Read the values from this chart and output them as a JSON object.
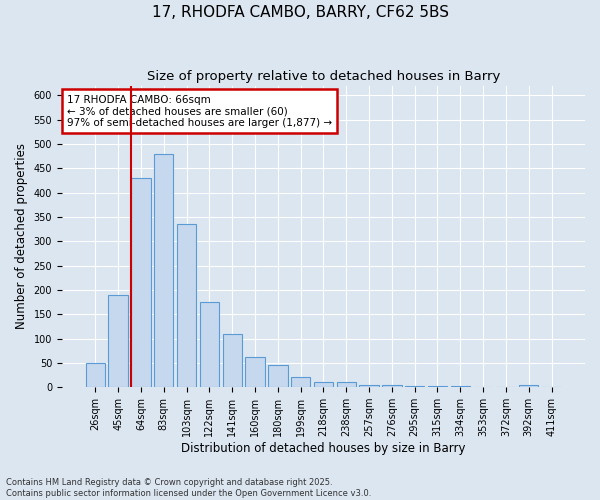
{
  "title1": "17, RHODFA CAMBO, BARRY, CF62 5BS",
  "title2": "Size of property relative to detached houses in Barry",
  "xlabel": "Distribution of detached houses by size in Barry",
  "ylabel": "Number of detached properties",
  "categories": [
    "26sqm",
    "45sqm",
    "64sqm",
    "83sqm",
    "103sqm",
    "122sqm",
    "141sqm",
    "160sqm",
    "180sqm",
    "199sqm",
    "218sqm",
    "238sqm",
    "257sqm",
    "276sqm",
    "295sqm",
    "315sqm",
    "334sqm",
    "353sqm",
    "372sqm",
    "392sqm",
    "411sqm"
  ],
  "values": [
    50,
    190,
    430,
    480,
    335,
    175,
    110,
    62,
    45,
    22,
    10,
    10,
    5,
    5,
    3,
    2,
    2,
    1,
    1,
    5,
    1
  ],
  "bar_color": "#c5d8ed",
  "bar_edge_color": "#5b9bd5",
  "vline_color": "#cc0000",
  "annotation_text": "17 RHODFA CAMBO: 66sqm\n← 3% of detached houses are smaller (60)\n97% of semi-detached houses are larger (1,877) →",
  "annotation_box_color": "#ffffff",
  "annotation_box_edge_color": "#cc0000",
  "ylim": [
    0,
    620
  ],
  "yticks": [
    0,
    50,
    100,
    150,
    200,
    250,
    300,
    350,
    400,
    450,
    500,
    550,
    600
  ],
  "background_color": "#dce6f1",
  "plot_background_color": "#dce6f1",
  "footer_text": "Contains HM Land Registry data © Crown copyright and database right 2025.\nContains public sector information licensed under the Open Government Licence v3.0.",
  "title_fontsize": 11,
  "subtitle_fontsize": 9.5,
  "tick_fontsize": 7,
  "label_fontsize": 8.5
}
